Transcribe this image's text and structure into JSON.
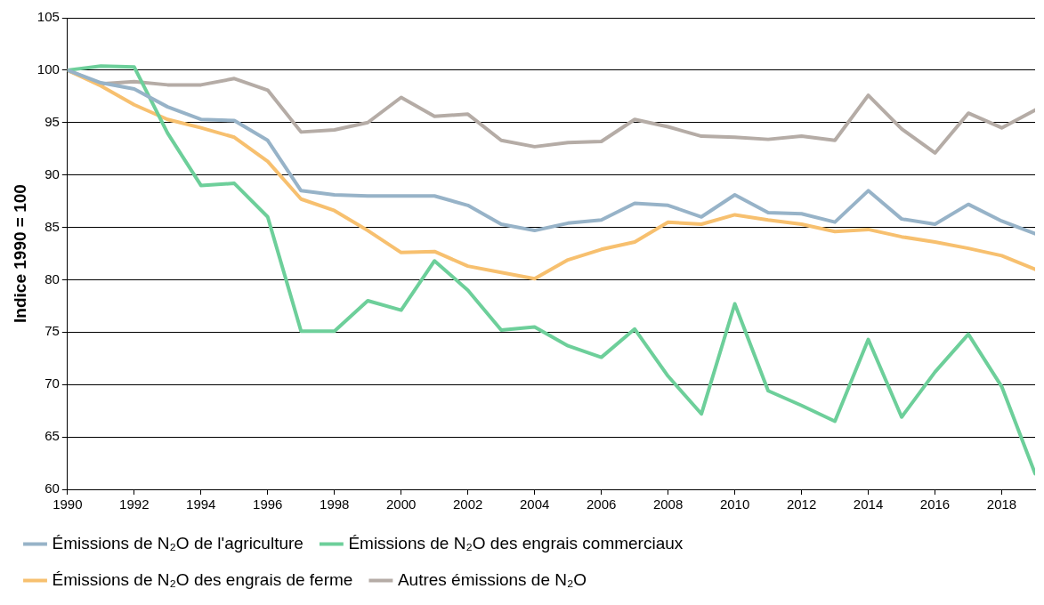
{
  "chart_data": {
    "type": "line",
    "ylabel": "Indice 1990 = 100",
    "x": [
      1990,
      1991,
      1992,
      1993,
      1994,
      1995,
      1996,
      1997,
      1998,
      1999,
      2000,
      2001,
      2002,
      2003,
      2004,
      2005,
      2006,
      2007,
      2008,
      2009,
      2010,
      2011,
      2012,
      2013,
      2014,
      2015,
      2016,
      2017,
      2018,
      2019
    ],
    "xlim": [
      1990,
      2019
    ],
    "xticks": [
      1990,
      1992,
      1994,
      1996,
      1998,
      2000,
      2002,
      2004,
      2006,
      2008,
      2010,
      2012,
      2014,
      2016,
      2018
    ],
    "ylim": [
      60,
      105
    ],
    "yticks": [
      60,
      65,
      70,
      75,
      80,
      85,
      90,
      95,
      100,
      105
    ],
    "grid": "y",
    "legend": "bottom",
    "marker": "none",
    "line_style": "solid",
    "series": [
      {
        "name": "Émissions de N₂O de l'agriculture",
        "color": "#97b3c8",
        "values": [
          100,
          98.8,
          98.2,
          96.5,
          95.3,
          95.2,
          93.3,
          88.5,
          88.1,
          88.0,
          88.0,
          88.0,
          87.1,
          85.3,
          84.7,
          85.4,
          85.7,
          87.3,
          87.1,
          86.0,
          88.1,
          86.4,
          86.3,
          85.5,
          88.5,
          85.8,
          85.3,
          87.2,
          85.6,
          84.4
        ]
      },
      {
        "name": "Émissions de N₂O des engrais commerciaux",
        "color": "#6dcf9a",
        "values": [
          100,
          100.4,
          100.3,
          94.0,
          89.0,
          89.2,
          86.0,
          75.1,
          75.1,
          78.0,
          77.1,
          81.8,
          79.0,
          75.2,
          75.5,
          73.7,
          72.6,
          75.3,
          70.8,
          67.2,
          77.7,
          69.4,
          68.0,
          66.5,
          74.3,
          66.9,
          71.2,
          74.8,
          69.8,
          61.5
        ]
      },
      {
        "name": "Émissions de N₂O des engrais de ferme",
        "color": "#f7c06f",
        "values": [
          100,
          98.5,
          96.7,
          95.3,
          94.5,
          93.6,
          91.3,
          87.7,
          86.6,
          84.7,
          82.6,
          82.7,
          81.3,
          80.7,
          80.1,
          81.9,
          82.9,
          83.6,
          85.5,
          85.3,
          86.2,
          85.7,
          85.3,
          84.6,
          84.8,
          84.1,
          83.6,
          83.0,
          82.3,
          81.0
        ]
      },
      {
        "name": "Autres émissions de N₂O",
        "color": "#b5aca6",
        "values": [
          100,
          98.7,
          98.9,
          98.6,
          98.6,
          99.2,
          98.1,
          94.1,
          94.3,
          95.0,
          97.4,
          95.6,
          95.8,
          93.3,
          92.7,
          93.1,
          93.2,
          95.3,
          94.6,
          93.7,
          93.6,
          93.4,
          93.7,
          93.3,
          97.6,
          94.4,
          92.1,
          95.9,
          94.5,
          96.2
        ]
      }
    ]
  }
}
